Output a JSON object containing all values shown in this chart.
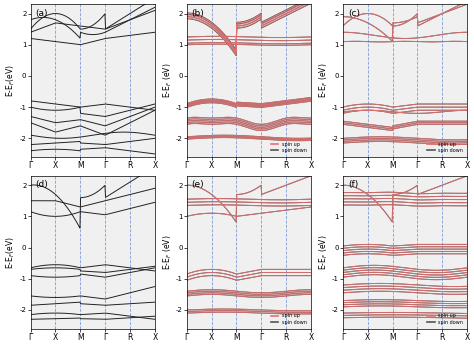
{
  "klabels": [
    "Γ",
    "X",
    "M",
    "Γ",
    "R",
    "X"
  ],
  "yticks": [
    -2,
    -1,
    0,
    1,
    2
  ],
  "vline_positions": [
    1,
    2,
    3,
    4,
    5
  ],
  "color_up": "#e87070",
  "color_down": "#555555",
  "color_nonmag": "#222222",
  "color_vline": "#6688cc",
  "background": "#f0f0f0",
  "ylabel": "E-E$_F$(eV)",
  "ylabel_mag": "E-E$_F$ (eV)"
}
